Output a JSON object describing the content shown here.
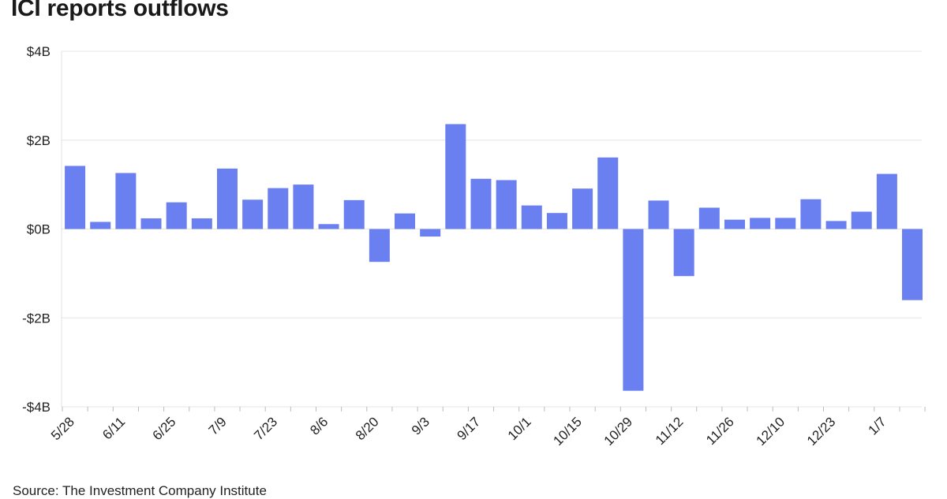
{
  "chart_data": {
    "type": "bar",
    "title": "ICI reports outflows",
    "source": "Source: The Investment Company Institute",
    "y_unit": "billions of dollars",
    "ylim": [
      -4,
      4
    ],
    "yticks": [
      4,
      2,
      0,
      -2,
      -4
    ],
    "ytick_labels": [
      "$4B",
      "$2B",
      "$0B",
      "-$2B",
      "-$4B"
    ],
    "x_tick_labels": [
      "5/28",
      "6/11",
      "6/25",
      "7/9",
      "7/23",
      "8/6",
      "8/20",
      "9/3",
      "9/17",
      "10/1",
      "10/15",
      "10/29",
      "11/12",
      "11/26",
      "12/10",
      "12/23",
      "1/7"
    ],
    "grid": "horizontal",
    "bar_color": "#6a7ff0",
    "values": [
      1.42,
      0.16,
      1.26,
      0.24,
      0.6,
      0.24,
      1.36,
      0.66,
      0.92,
      1.0,
      0.11,
      0.65,
      -0.74,
      0.35,
      -0.17,
      2.36,
      1.13,
      1.1,
      0.53,
      0.36,
      0.91,
      1.61,
      -3.64,
      0.64,
      -1.06,
      0.48,
      0.21,
      0.25,
      0.25,
      0.67,
      0.18,
      0.39,
      1.24,
      -1.6
    ]
  }
}
